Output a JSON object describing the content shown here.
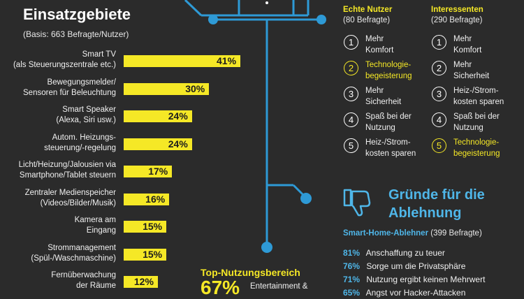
{
  "header": {
    "title": "Einsatzgebiete",
    "basis": "(Basis: 663 Befragte/Nutzer)"
  },
  "chart_data": {
    "type": "bar",
    "title": "Einsatzgebiete",
    "subtitle": "(Basis: 663 Befragte/Nutzer)",
    "categories": [
      "Smart TV (als Steuerungszentrale etc.)",
      "Bewegungsmelder/ Sensoren für Beleuchtung",
      "Smart Speaker (Alexa, Siri usw.)",
      "Autom. Heizungs-steuerung/-regelung",
      "Licht/Heizung/Jalousien via Smartphone/Tablet steuern",
      "Zentraler Medienspeicher (Videos/Bilder/Musik)",
      "Kamera am Eingang",
      "Strommanagement (Spül-/Waschmaschine)",
      "Fernüberwachung der Räume"
    ],
    "values": [
      41,
      30,
      24,
      24,
      17,
      16,
      15,
      15,
      12
    ],
    "value_labels": [
      "41%",
      "30%",
      "24%",
      "24%",
      "17%",
      "16%",
      "15%",
      "15%",
      "12%"
    ],
    "unit": "%",
    "xlim": [
      0,
      41
    ],
    "bar_color": "#f5e826",
    "category_lines": [
      [
        "Smart TV",
        "(als Steuerungszentrale etc.)"
      ],
      [
        "Bewegungsmelder/",
        "Sensoren für Beleuchtung"
      ],
      [
        "Smart Speaker",
        "(Alexa, Siri usw.)"
      ],
      [
        "Autom. Heizungs-",
        "steuerung/-regelung"
      ],
      [
        "Licht/Heizung/Jalousien via",
        "Smartphone/Tablet steuern"
      ],
      [
        "Zentraler Medienspeicher",
        "(Videos/Bilder/Musik)"
      ],
      [
        "Kamera am",
        "Eingang"
      ],
      [
        "Strommanagement",
        "(Spül-/Waschmaschine)"
      ],
      [
        "Fernüberwachung",
        "der Räume"
      ]
    ]
  },
  "rankings": {
    "echte": {
      "head": "Echte Nutzer",
      "sub": "(80 Befragte)",
      "items": [
        {
          "num": "1",
          "text": "Mehr\nKomfort",
          "highlight": false
        },
        {
          "num": "2",
          "text": "Technologie-\nbegeisterung",
          "highlight": true
        },
        {
          "num": "3",
          "text": "Mehr\nSicherheit",
          "highlight": false
        },
        {
          "num": "4",
          "text": "Spaß bei der\nNutzung",
          "highlight": false
        },
        {
          "num": "5",
          "text": "Heiz-/Strom-\nkosten sparen",
          "highlight": false
        }
      ]
    },
    "interessenten": {
      "head": "Interessenten",
      "sub": "(290 Befragte)",
      "items": [
        {
          "num": "1",
          "text": "Mehr\nKomfort",
          "highlight": false
        },
        {
          "num": "2",
          "text": "Mehr\nSicherheit",
          "highlight": false
        },
        {
          "num": "3",
          "text": "Heiz-/Strom-\nkosten sparen",
          "highlight": false
        },
        {
          "num": "4",
          "text": "Spaß bei der\nNutzung",
          "highlight": false
        },
        {
          "num": "5",
          "text": "Technologie-\nbegeisterung",
          "highlight": true
        }
      ]
    }
  },
  "ablehnung": {
    "title_line1": "Gründe für die",
    "title_line2": "Ablehnung",
    "sub_bold": "Smart-Home-Ablehner",
    "sub_rest": " (399 Befragte)",
    "icon": "thumbs-down-icon",
    "reasons": [
      {
        "pct": "81%",
        "text": "Anschaffung zu teuer"
      },
      {
        "pct": "76%",
        "text": "Sorge um die Privatsphäre"
      },
      {
        "pct": "71%",
        "text": "Nutzung ergibt keinen Mehrwert"
      },
      {
        "pct": "65%",
        "text": "Angst vor Hacker-Attacken"
      }
    ]
  },
  "top": {
    "title": "Top-Nutzungsbereich",
    "pct": "67%",
    "desc": "Entertainment &"
  },
  "colors": {
    "background": "#2b2b2b",
    "yellow": "#f5e826",
    "blue": "#4fb6e8",
    "line_blue": "#2e9ad6"
  }
}
